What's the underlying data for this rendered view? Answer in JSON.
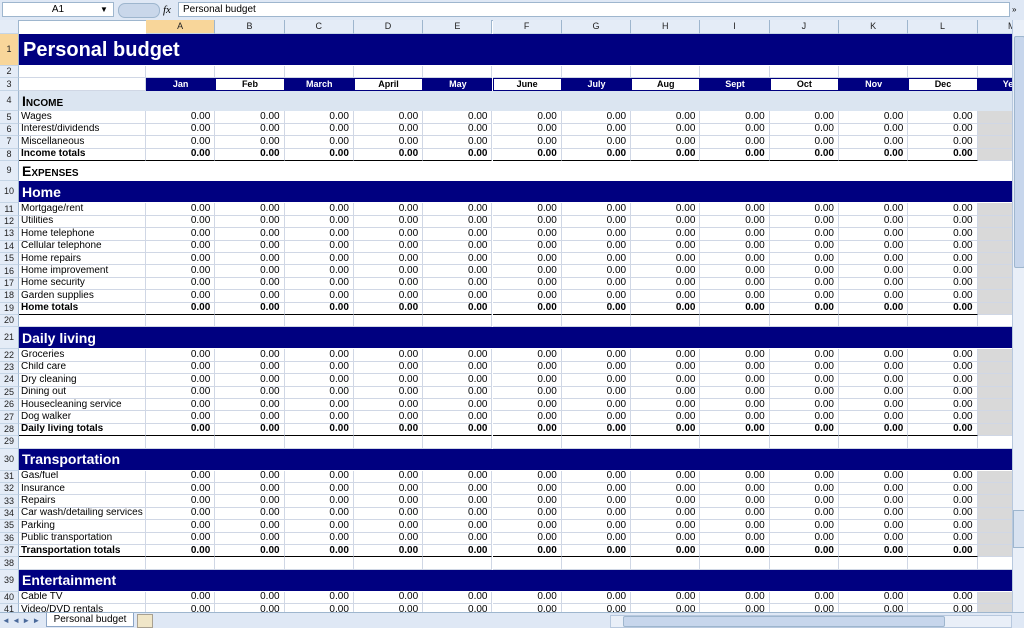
{
  "toolbar": {
    "name_box": "A1",
    "fx": "fx",
    "formula": "Personal budget"
  },
  "column_headers": [
    "A",
    "B",
    "C",
    "D",
    "E",
    "F",
    "G",
    "H",
    "I",
    "J",
    "K",
    "L",
    "M"
  ],
  "sheet": {
    "months": [
      "Jan",
      "Feb",
      "March",
      "April",
      "May",
      "June",
      "July",
      "Aug",
      "Sept",
      "Oct",
      "Nov",
      "Dec",
      "Year"
    ],
    "row_numbers": [
      1,
      2,
      3,
      4,
      5,
      6,
      7,
      8,
      9,
      10,
      11,
      12,
      13,
      14,
      15,
      16,
      17,
      18,
      19,
      20,
      21,
      22,
      23,
      24,
      25,
      26,
      27,
      28,
      29,
      30,
      31,
      32,
      33,
      34,
      35,
      36,
      37,
      38,
      39,
      40,
      41
    ],
    "rows": [
      {
        "kind": "title",
        "label": "Personal budget"
      },
      {
        "kind": "blank"
      },
      {
        "kind": "months"
      },
      {
        "kind": "section",
        "label": "Income"
      },
      {
        "kind": "item",
        "label": "Wages",
        "values": [
          "0.00",
          "0.00",
          "0.00",
          "0.00",
          "0.00",
          "0.00",
          "0.00",
          "0.00",
          "0.00",
          "0.00",
          "0.00",
          "0.00"
        ]
      },
      {
        "kind": "item",
        "label": "Interest/dividends",
        "values": [
          "0.00",
          "0.00",
          "0.00",
          "0.00",
          "0.00",
          "0.00",
          "0.00",
          "0.00",
          "0.00",
          "0.00",
          "0.00",
          "0.00"
        ]
      },
      {
        "kind": "item",
        "label": "Miscellaneous",
        "values": [
          "0.00",
          "0.00",
          "0.00",
          "0.00",
          "0.00",
          "0.00",
          "0.00",
          "0.00",
          "0.00",
          "0.00",
          "0.00",
          "0.00"
        ]
      },
      {
        "kind": "total",
        "label": "Income totals",
        "values": [
          "0.00",
          "0.00",
          "0.00",
          "0.00",
          "0.00",
          "0.00",
          "0.00",
          "0.00",
          "0.00",
          "0.00",
          "0.00",
          "0.00"
        ]
      },
      {
        "kind": "caps",
        "label": "Expenses"
      },
      {
        "kind": "band",
        "label": "Home"
      },
      {
        "kind": "item",
        "label": "Mortgage/rent",
        "values": [
          "0.00",
          "0.00",
          "0.00",
          "0.00",
          "0.00",
          "0.00",
          "0.00",
          "0.00",
          "0.00",
          "0.00",
          "0.00",
          "0.00"
        ]
      },
      {
        "kind": "item",
        "label": "Utilities",
        "values": [
          "0.00",
          "0.00",
          "0.00",
          "0.00",
          "0.00",
          "0.00",
          "0.00",
          "0.00",
          "0.00",
          "0.00",
          "0.00",
          "0.00"
        ]
      },
      {
        "kind": "item",
        "label": "Home telephone",
        "values": [
          "0.00",
          "0.00",
          "0.00",
          "0.00",
          "0.00",
          "0.00",
          "0.00",
          "0.00",
          "0.00",
          "0.00",
          "0.00",
          "0.00"
        ]
      },
      {
        "kind": "item",
        "label": "Cellular telephone",
        "values": [
          "0.00",
          "0.00",
          "0.00",
          "0.00",
          "0.00",
          "0.00",
          "0.00",
          "0.00",
          "0.00",
          "0.00",
          "0.00",
          "0.00"
        ]
      },
      {
        "kind": "item",
        "label": "Home repairs",
        "values": [
          "0.00",
          "0.00",
          "0.00",
          "0.00",
          "0.00",
          "0.00",
          "0.00",
          "0.00",
          "0.00",
          "0.00",
          "0.00",
          "0.00"
        ]
      },
      {
        "kind": "item",
        "label": "Home improvement",
        "values": [
          "0.00",
          "0.00",
          "0.00",
          "0.00",
          "0.00",
          "0.00",
          "0.00",
          "0.00",
          "0.00",
          "0.00",
          "0.00",
          "0.00"
        ]
      },
      {
        "kind": "item",
        "label": "Home security",
        "values": [
          "0.00",
          "0.00",
          "0.00",
          "0.00",
          "0.00",
          "0.00",
          "0.00",
          "0.00",
          "0.00",
          "0.00",
          "0.00",
          "0.00"
        ]
      },
      {
        "kind": "item",
        "label": "Garden supplies",
        "values": [
          "0.00",
          "0.00",
          "0.00",
          "0.00",
          "0.00",
          "0.00",
          "0.00",
          "0.00",
          "0.00",
          "0.00",
          "0.00",
          "0.00"
        ]
      },
      {
        "kind": "total",
        "label": "Home totals",
        "values": [
          "0.00",
          "0.00",
          "0.00",
          "0.00",
          "0.00",
          "0.00",
          "0.00",
          "0.00",
          "0.00",
          "0.00",
          "0.00",
          "0.00"
        ]
      },
      {
        "kind": "blank"
      },
      {
        "kind": "band",
        "label": "Daily living"
      },
      {
        "kind": "item",
        "label": "Groceries",
        "values": [
          "0.00",
          "0.00",
          "0.00",
          "0.00",
          "0.00",
          "0.00",
          "0.00",
          "0.00",
          "0.00",
          "0.00",
          "0.00",
          "0.00"
        ]
      },
      {
        "kind": "item",
        "label": "Child care",
        "values": [
          "0.00",
          "0.00",
          "0.00",
          "0.00",
          "0.00",
          "0.00",
          "0.00",
          "0.00",
          "0.00",
          "0.00",
          "0.00",
          "0.00"
        ]
      },
      {
        "kind": "item",
        "label": "Dry cleaning",
        "values": [
          "0.00",
          "0.00",
          "0.00",
          "0.00",
          "0.00",
          "0.00",
          "0.00",
          "0.00",
          "0.00",
          "0.00",
          "0.00",
          "0.00"
        ]
      },
      {
        "kind": "item",
        "label": "Dining out",
        "values": [
          "0.00",
          "0.00",
          "0.00",
          "0.00",
          "0.00",
          "0.00",
          "0.00",
          "0.00",
          "0.00",
          "0.00",
          "0.00",
          "0.00"
        ]
      },
      {
        "kind": "item",
        "label": "Housecleaning service",
        "values": [
          "0.00",
          "0.00",
          "0.00",
          "0.00",
          "0.00",
          "0.00",
          "0.00",
          "0.00",
          "0.00",
          "0.00",
          "0.00",
          "0.00"
        ]
      },
      {
        "kind": "item",
        "label": "Dog walker",
        "values": [
          "0.00",
          "0.00",
          "0.00",
          "0.00",
          "0.00",
          "0.00",
          "0.00",
          "0.00",
          "0.00",
          "0.00",
          "0.00",
          "0.00"
        ]
      },
      {
        "kind": "total",
        "label": "Daily living totals",
        "values": [
          "0.00",
          "0.00",
          "0.00",
          "0.00",
          "0.00",
          "0.00",
          "0.00",
          "0.00",
          "0.00",
          "0.00",
          "0.00",
          "0.00"
        ]
      },
      {
        "kind": "blank"
      },
      {
        "kind": "band",
        "label": "Transportation"
      },
      {
        "kind": "item",
        "label": "Gas/fuel",
        "values": [
          "0.00",
          "0.00",
          "0.00",
          "0.00",
          "0.00",
          "0.00",
          "0.00",
          "0.00",
          "0.00",
          "0.00",
          "0.00",
          "0.00"
        ]
      },
      {
        "kind": "item",
        "label": "Insurance",
        "values": [
          "0.00",
          "0.00",
          "0.00",
          "0.00",
          "0.00",
          "0.00",
          "0.00",
          "0.00",
          "0.00",
          "0.00",
          "0.00",
          "0.00"
        ]
      },
      {
        "kind": "item",
        "label": "Repairs",
        "values": [
          "0.00",
          "0.00",
          "0.00",
          "0.00",
          "0.00",
          "0.00",
          "0.00",
          "0.00",
          "0.00",
          "0.00",
          "0.00",
          "0.00"
        ]
      },
      {
        "kind": "item",
        "label": "Car wash/detailing services",
        "values": [
          "0.00",
          "0.00",
          "0.00",
          "0.00",
          "0.00",
          "0.00",
          "0.00",
          "0.00",
          "0.00",
          "0.00",
          "0.00",
          "0.00"
        ]
      },
      {
        "kind": "item",
        "label": "Parking",
        "values": [
          "0.00",
          "0.00",
          "0.00",
          "0.00",
          "0.00",
          "0.00",
          "0.00",
          "0.00",
          "0.00",
          "0.00",
          "0.00",
          "0.00"
        ]
      },
      {
        "kind": "item",
        "label": "Public transportation",
        "values": [
          "0.00",
          "0.00",
          "0.00",
          "0.00",
          "0.00",
          "0.00",
          "0.00",
          "0.00",
          "0.00",
          "0.00",
          "0.00",
          "0.00"
        ]
      },
      {
        "kind": "total",
        "label": "Transportation totals",
        "values": [
          "0.00",
          "0.00",
          "0.00",
          "0.00",
          "0.00",
          "0.00",
          "0.00",
          "0.00",
          "0.00",
          "0.00",
          "0.00",
          "0.00"
        ]
      },
      {
        "kind": "blank"
      },
      {
        "kind": "band",
        "label": "Entertainment"
      },
      {
        "kind": "item",
        "label": "Cable TV",
        "values": [
          "0.00",
          "0.00",
          "0.00",
          "0.00",
          "0.00",
          "0.00",
          "0.00",
          "0.00",
          "0.00",
          "0.00",
          "0.00",
          "0.00"
        ]
      },
      {
        "kind": "item",
        "label": "Video/DVD rentals",
        "values": [
          "0.00",
          "0.00",
          "0.00",
          "0.00",
          "0.00",
          "0.00",
          "0.00",
          "0.00",
          "0.00",
          "0.00",
          "0.00",
          "0.00"
        ]
      }
    ]
  },
  "tabs": [
    "Personal budget"
  ]
}
